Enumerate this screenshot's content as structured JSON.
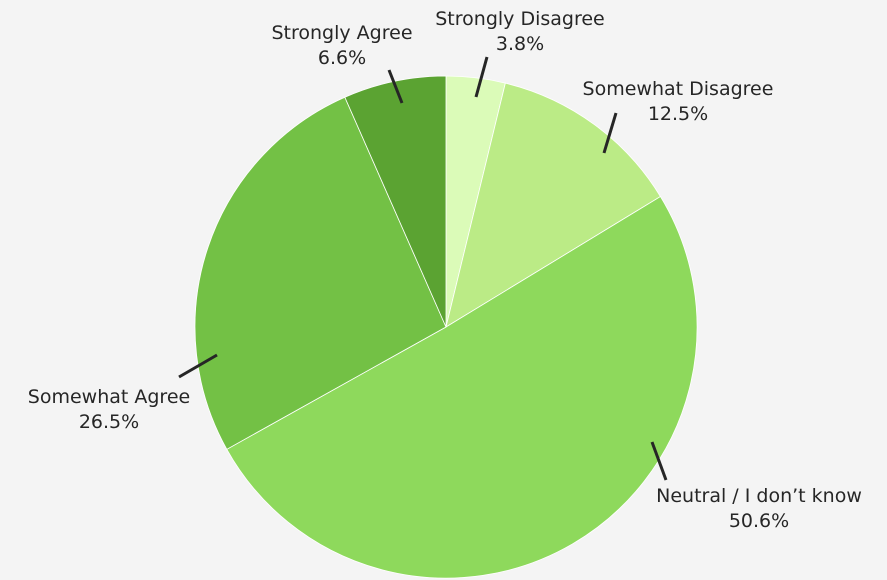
{
  "chart_data": {
    "type": "pie",
    "title": "",
    "start_angle_deg": 0,
    "direction": "clockwise",
    "slices": [
      {
        "label": "Strongly Disagree",
        "value": 3.8,
        "percent_text": "3.8%",
        "color": "#dbfbb8"
      },
      {
        "label": "Somewhat Disagree",
        "value": 12.5,
        "percent_text": "12.5%",
        "color": "#bbeb86"
      },
      {
        "label": "Neutral / I don’t know",
        "value": 50.6,
        "percent_text": "50.6%",
        "color": "#8ed95c"
      },
      {
        "label": "Somewhat Agree",
        "value": 26.5,
        "percent_text": "26.5%",
        "color": "#73c145"
      },
      {
        "label": "Strongly Agree",
        "value": 6.6,
        "percent_text": "6.6%",
        "color": "#5ba332"
      }
    ]
  },
  "colors": {
    "background": "#f4f4f4",
    "leader_line": "#262626",
    "slice_border": "#ffffff"
  }
}
